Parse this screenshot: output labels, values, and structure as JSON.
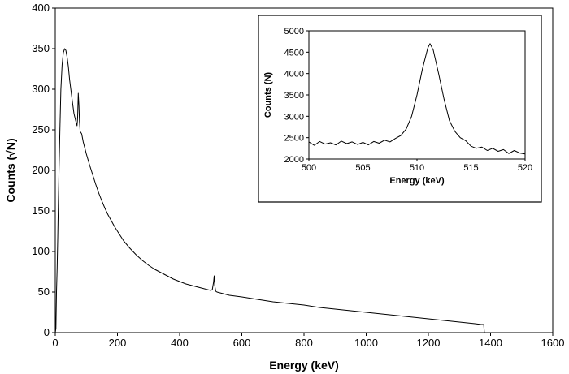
{
  "chart_data": [
    {
      "type": "line",
      "title": "",
      "xlabel": "Energy (keV)",
      "ylabel": "Counts (√N)",
      "xlim": [
        0,
        1600
      ],
      "ylim": [
        0,
        400
      ],
      "xticks": [
        0,
        200,
        400,
        600,
        800,
        1000,
        1200,
        1400,
        1600
      ],
      "yticks": [
        0,
        50,
        100,
        150,
        200,
        250,
        300,
        350,
        400
      ],
      "grid": false,
      "legend": "none",
      "line_color": "#000000",
      "series": [
        {
          "x": [
            0,
            2,
            4,
            6,
            8,
            10,
            12,
            15,
            18,
            22,
            26,
            30,
            34,
            38,
            42,
            46,
            50,
            55,
            60,
            65,
            70,
            72,
            74,
            76,
            78,
            80,
            85,
            90,
            100,
            110,
            120,
            130,
            140,
            150,
            160,
            170,
            180,
            190,
            200,
            220,
            240,
            260,
            280,
            300,
            320,
            340,
            360,
            380,
            400,
            420,
            440,
            460,
            480,
            500,
            505,
            509,
            511,
            513,
            516,
            520,
            540,
            560,
            580,
            600,
            650,
            700,
            750,
            800,
            850,
            900,
            950,
            1000,
            1050,
            1100,
            1150,
            1200,
            1250,
            1300,
            1350,
            1370,
            1378,
            1380
          ],
          "y": [
            0,
            5,
            50,
            80,
            120,
            160,
            200,
            250,
            300,
            330,
            345,
            350,
            348,
            340,
            328,
            312,
            300,
            285,
            270,
            262,
            255,
            265,
            295,
            280,
            260,
            248,
            245,
            235,
            220,
            207,
            195,
            183,
            172,
            162,
            153,
            145,
            138,
            131,
            125,
            113,
            104,
            96,
            89,
            83,
            78,
            74,
            70,
            66,
            63,
            60,
            58,
            56,
            54,
            52,
            53,
            62,
            70,
            58,
            51,
            50,
            48,
            46,
            45,
            44,
            41,
            38,
            36,
            34,
            31,
            29,
            27,
            25,
            23,
            21,
            19,
            17,
            15,
            13,
            11,
            10,
            10,
            0
          ]
        }
      ]
    },
    {
      "type": "line",
      "title": "",
      "xlabel": "Energy (keV)",
      "ylabel": "Counts (N)",
      "xlim": [
        500,
        520
      ],
      "ylim": [
        2000,
        5000
      ],
      "xticks": [
        500,
        505,
        510,
        515,
        520
      ],
      "yticks": [
        2000,
        2500,
        3000,
        3500,
        4000,
        4500,
        5000
      ],
      "grid": false,
      "legend": "none",
      "line_color": "#000000",
      "series": [
        {
          "x": [
            500,
            500.5,
            501,
            501.5,
            502,
            502.5,
            503,
            503.5,
            504,
            504.5,
            505,
            505.5,
            506,
            506.5,
            507,
            507.5,
            508,
            508.5,
            509,
            509.5,
            510,
            510.5,
            511,
            511.2,
            511.5,
            512,
            512.5,
            513,
            513.5,
            514,
            514.5,
            515,
            515.5,
            516,
            516.5,
            517,
            517.5,
            518,
            518.5,
            519,
            519.5,
            520
          ],
          "y": [
            2400,
            2320,
            2410,
            2350,
            2380,
            2330,
            2420,
            2360,
            2400,
            2340,
            2390,
            2330,
            2410,
            2370,
            2440,
            2400,
            2480,
            2550,
            2700,
            3000,
            3500,
            4100,
            4600,
            4700,
            4550,
            4000,
            3400,
            2900,
            2650,
            2500,
            2430,
            2300,
            2250,
            2280,
            2200,
            2250,
            2180,
            2220,
            2130,
            2200,
            2140,
            2120
          ]
        }
      ]
    }
  ]
}
